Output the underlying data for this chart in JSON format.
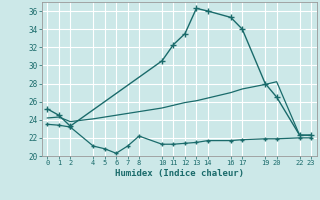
{
  "xlabel": "Humidex (Indice chaleur)",
  "bg_color": "#cce8e8",
  "grid_color": "#ffffff",
  "line_color": "#1a6b6b",
  "ylim": [
    20,
    37
  ],
  "yticks": [
    20,
    22,
    24,
    26,
    28,
    30,
    32,
    34,
    36
  ],
  "xlim": [
    -0.5,
    23.5
  ],
  "xtick_positions": [
    0,
    1,
    2,
    4,
    5,
    6,
    7,
    8,
    10,
    11,
    12,
    13,
    14,
    16,
    17,
    19,
    20,
    22,
    23
  ],
  "line1_x": [
    0,
    1,
    2,
    10,
    11,
    12,
    13,
    14,
    16,
    17,
    19,
    20,
    22,
    23
  ],
  "line1_y": [
    25.2,
    24.5,
    23.3,
    30.5,
    32.3,
    33.5,
    36.3,
    36.0,
    35.3,
    34.0,
    28.0,
    26.5,
    22.3,
    22.3
  ],
  "line2_x": [
    0,
    1,
    2,
    4,
    5,
    6,
    7,
    8,
    10,
    11,
    12,
    13,
    14,
    16,
    17,
    19,
    20,
    22,
    23
  ],
  "line2_y": [
    24.2,
    24.3,
    23.8,
    24.1,
    24.3,
    24.5,
    24.7,
    24.9,
    25.3,
    25.6,
    25.9,
    26.1,
    26.4,
    27.0,
    27.4,
    27.9,
    28.2,
    22.3,
    22.3
  ],
  "line3_x": [
    0,
    1,
    2,
    4,
    5,
    6,
    7,
    8,
    10,
    11,
    12,
    13,
    14,
    16,
    17,
    19,
    20,
    22,
    23
  ],
  "line3_y": [
    23.5,
    23.4,
    23.2,
    21.1,
    20.8,
    20.3,
    21.1,
    22.2,
    21.3,
    21.3,
    21.4,
    21.5,
    21.7,
    21.7,
    21.8,
    21.9,
    21.9,
    22.0,
    22.0
  ]
}
